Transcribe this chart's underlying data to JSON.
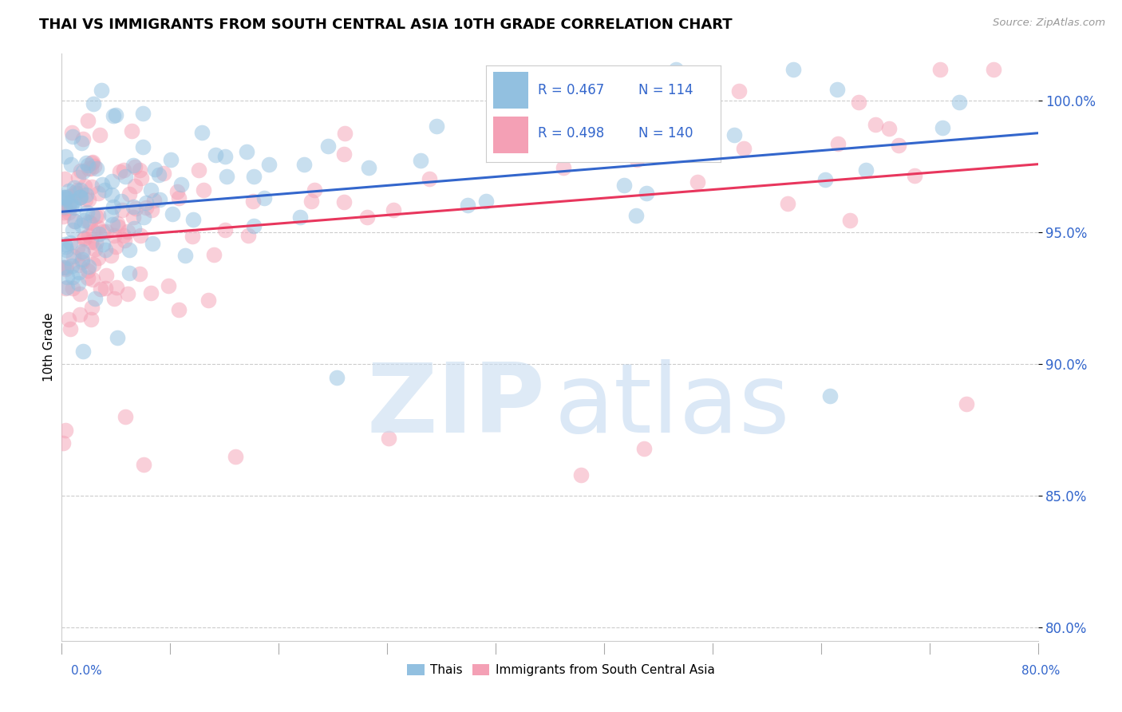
{
  "title": "THAI VS IMMIGRANTS FROM SOUTH CENTRAL ASIA 10TH GRADE CORRELATION CHART",
  "source": "Source: ZipAtlas.com",
  "ylabel": "10th Grade",
  "y_ticks": [
    80.0,
    85.0,
    90.0,
    95.0,
    100.0
  ],
  "x_min": 0.0,
  "x_max": 80.0,
  "y_min": 79.5,
  "y_max": 101.8,
  "legend_blue_r": "0.467",
  "legend_blue_n": "114",
  "legend_pink_r": "0.498",
  "legend_pink_n": "140",
  "blue_color": "#92C0E0",
  "pink_color": "#F4A0B5",
  "trend_blue": "#3366CC",
  "trend_pink": "#E8365D",
  "blue_seed": 42,
  "pink_seed": 7,
  "watermark_zip_color": "#C8DCF0",
  "watermark_atlas_color": "#B0CCEC"
}
